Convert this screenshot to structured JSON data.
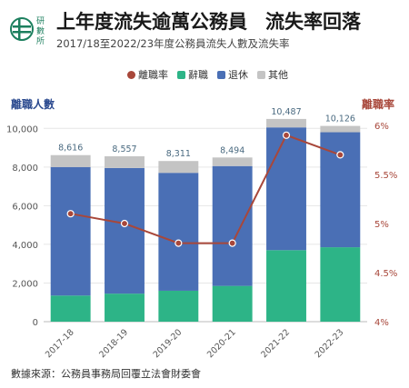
{
  "title_main": "上年度流失逾萬公務員",
  "title_tag": "流失率回落",
  "subtitle": "2017/18至2022/23年度公務員流失人數及流失率",
  "logo_text": "研數所",
  "source": "數據來源：公務員事務局回覆立法會財委會",
  "colors": {
    "rate": "#a8473a",
    "resign": "#2db487",
    "retire": "#4a6fb5",
    "other": "#c4c4c4"
  },
  "chart_data": {
    "type": "bar",
    "stacked": true,
    "categories": [
      "2017-18",
      "2018-19",
      "2019-20",
      "2020-21",
      "2021-22",
      "2022-23"
    ],
    "series": [
      {
        "name": "辭職",
        "values": [
          1350,
          1450,
          1600,
          1850,
          3700,
          3850
        ]
      },
      {
        "name": "退休",
        "values": [
          6650,
          6500,
          6100,
          6200,
          6350,
          5950
        ]
      },
      {
        "name": "其他",
        "values": [
          616,
          607,
          611,
          444,
          437,
          326
        ]
      }
    ],
    "totals": [
      "8,616",
      "8,557",
      "8,311",
      "8,494",
      "10,487",
      "10,126"
    ],
    "line": {
      "name": "離職率",
      "values": [
        5.1,
        5.0,
        4.8,
        4.8,
        5.9,
        5.7
      ]
    },
    "ylabel": "離職人數",
    "y2label": "離職率",
    "ylim": [
      0,
      11000
    ],
    "y2lim": [
      4,
      6
    ],
    "yticks": [
      0,
      2000,
      4000,
      6000,
      8000,
      10000
    ],
    "ytick_labels": [
      "0",
      "2,000",
      "4,000",
      "6,000",
      "8,000",
      "10,000"
    ],
    "y2ticks": [
      4,
      4.5,
      5,
      5.5,
      6
    ],
    "y2tick_labels": [
      "4%",
      "4.5%",
      "5%",
      "5.5%",
      "6%"
    ],
    "grid": true,
    "legend_position": "top"
  }
}
